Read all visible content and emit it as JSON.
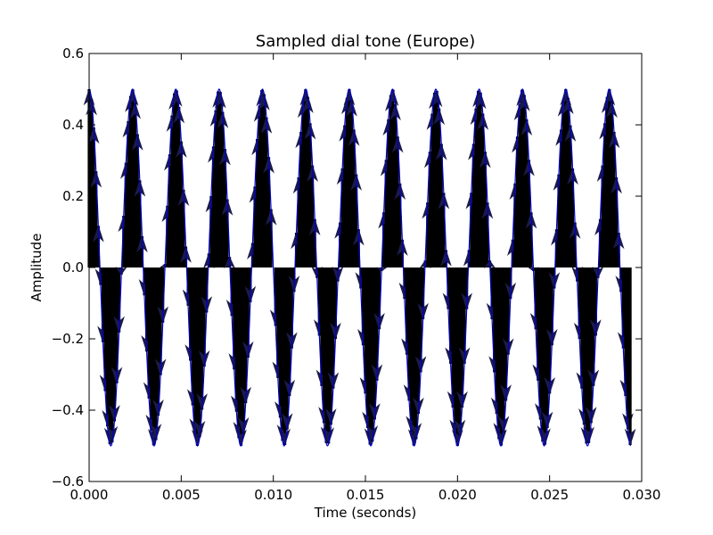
{
  "chart_data": {
    "type": "line",
    "title": "Sampled dial tone (Europe)",
    "xlabel": "Time (seconds)",
    "ylabel": "Amplitude",
    "xlim": [
      0.0,
      0.03
    ],
    "ylim": [
      -0.6,
      0.6
    ],
    "grid": false,
    "x_ticks": [
      0.0,
      0.005,
      0.01,
      0.015,
      0.02,
      0.025,
      0.03
    ],
    "x_tick_labels": [
      "0.000",
      "0.005",
      "0.010",
      "0.015",
      "0.020",
      "0.025",
      "0.030"
    ],
    "y_ticks": [
      -0.6,
      -0.4,
      -0.2,
      0.0,
      0.2,
      0.4,
      0.6
    ],
    "y_tick_labels": [
      "−0.6",
      "−0.4",
      "−0.2",
      "0.0",
      "0.2",
      "0.4",
      "0.6"
    ],
    "signal": {
      "frequency_hz": 425,
      "amplitude": 0.5,
      "x_start": 0.0,
      "x_end": 0.0294,
      "line_color": "#0000cc"
    },
    "samples": {
      "sample_rate_hz": 8000,
      "count": 240,
      "style": "stem with arrowheads",
      "stem_color": "#000000",
      "arrow_color": "#1a1a4a"
    }
  }
}
